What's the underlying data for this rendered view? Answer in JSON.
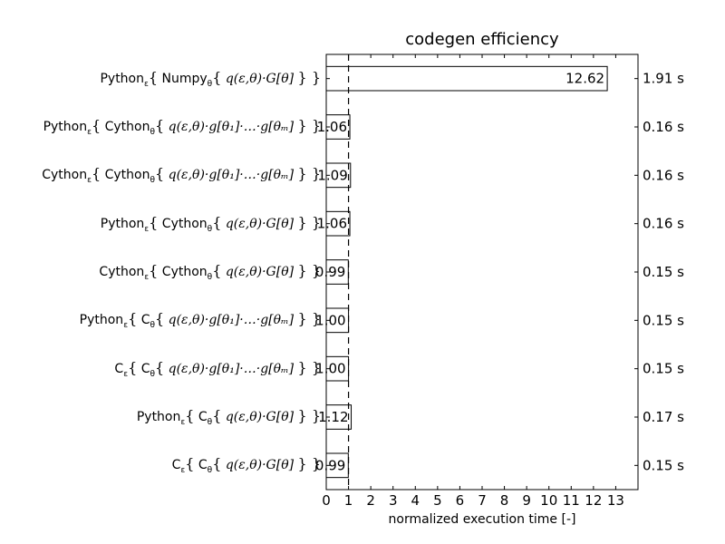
{
  "chart_data": {
    "type": "bar",
    "orientation": "horizontal",
    "title": "codegen efficiency",
    "xlabel": "normalized execution time [-]",
    "ylabel": "",
    "xlim": [
      0,
      14
    ],
    "xticks": [
      "0",
      "1",
      "2",
      "3",
      "4",
      "5",
      "6",
      "7",
      "8",
      "9",
      "10",
      "11",
      "12",
      "13"
    ],
    "reference_line_x": 1,
    "grid": false,
    "categories": [
      "Python_ε{ Numpy_θ{ q(ε,θ)·G[θ] } }",
      "Python_ε{ Cython_θ{ q(ε,θ)·g[θ_1]·…·g[θ_m] } }",
      "Cython_ε{ Cython_θ{ q(ε,θ)·g[θ_1]·…·g[θ_m] } }",
      "Python_ε{ Cython_θ{ q(ε,θ)·G[θ] } }",
      "Cython_ε{ Cython_θ{ q(ε,θ)·G[θ] } }",
      "Python_ε{ C_θ{ q(ε,θ)·g[θ_1]·…·g[θ_m] } }",
      "C_ε{ C_θ{ q(ε,θ)·g[θ_1]·…·g[θ_m] } }",
      "Python_ε{ C_θ{ q(ε,θ)·G[θ] } }",
      "C_ε{ C_θ{ q(ε,θ)·G[θ] } }"
    ],
    "values": [
      12.62,
      1.06,
      1.09,
      1.06,
      0.99,
      1.0,
      1.0,
      1.12,
      0.99
    ],
    "value_labels": [
      "12.62",
      "1.06",
      "1.09",
      "1.06",
      "0.99",
      "1.00",
      "1.00",
      "1.12",
      "0.99"
    ],
    "times": [
      "1.91 s",
      "0.16 s",
      "0.16 s",
      "0.16 s",
      "0.15 s",
      "0.15 s",
      "0.15 s",
      "0.17 s",
      "0.15 s"
    ]
  },
  "labels": [
    {
      "outer": "Python",
      "inner": "Numpy",
      "expr": "q(ε,θ)·G[θ]"
    },
    {
      "outer": "Python",
      "inner": "Cython",
      "expr": "q(ε,θ)·g[θ₁]·…·g[θₘ]"
    },
    {
      "outer": "Cython",
      "inner": "Cython",
      "expr": "q(ε,θ)·g[θ₁]·…·g[θₘ]"
    },
    {
      "outer": "Python",
      "inner": "Cython",
      "expr": "q(ε,θ)·G[θ]"
    },
    {
      "outer": "Cython",
      "inner": "Cython",
      "expr": "q(ε,θ)·G[θ]"
    },
    {
      "outer": "Python",
      "inner": "C",
      "expr": "q(ε,θ)·g[θ₁]·…·g[θₘ]"
    },
    {
      "outer": "C",
      "inner": "C",
      "expr": "q(ε,θ)·g[θ₁]·…·g[θₘ]"
    },
    {
      "outer": "Python",
      "inner": "C",
      "expr": "q(ε,θ)·G[θ]"
    },
    {
      "outer": "C",
      "inner": "C",
      "expr": "q(ε,θ)·G[θ]"
    }
  ],
  "symbols": {
    "eps": "ε",
    "theta": "θ",
    "lbrace": "{",
    "rbrace": "}"
  }
}
